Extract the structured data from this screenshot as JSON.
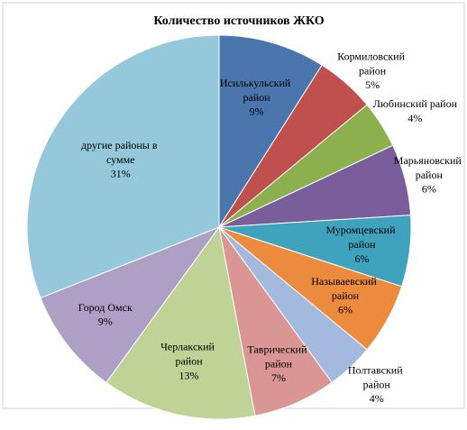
{
  "chart_data": {
    "type": "pie",
    "title": "Количество источников ЖКО",
    "categories": [
      "Исилькульский район",
      "Кормиловский район",
      "Любинский район",
      "Марьяновский район",
      "Муромцевский район",
      "Называевский район",
      "Полтавский район",
      "Таврический район",
      "Черлакский район",
      "Город Омск",
      "другие районы в сумме"
    ],
    "values": [
      9,
      5,
      4,
      6,
      6,
      6,
      4,
      7,
      13,
      9,
      31
    ],
    "value_labels": [
      "9%",
      "5%",
      "4%",
      "6%",
      "6%",
      "6%",
      "4%",
      "7%",
      "13%",
      "9%",
      "31%"
    ],
    "colors": [
      "#4a76ad",
      "#c0504d",
      "#8db04e",
      "#7a5e9c",
      "#3fa3bd",
      "#ec8b3e",
      "#a3b9dd",
      "#d99694",
      "#bfd396",
      "#ae9fc5",
      "#94c8da"
    ]
  }
}
